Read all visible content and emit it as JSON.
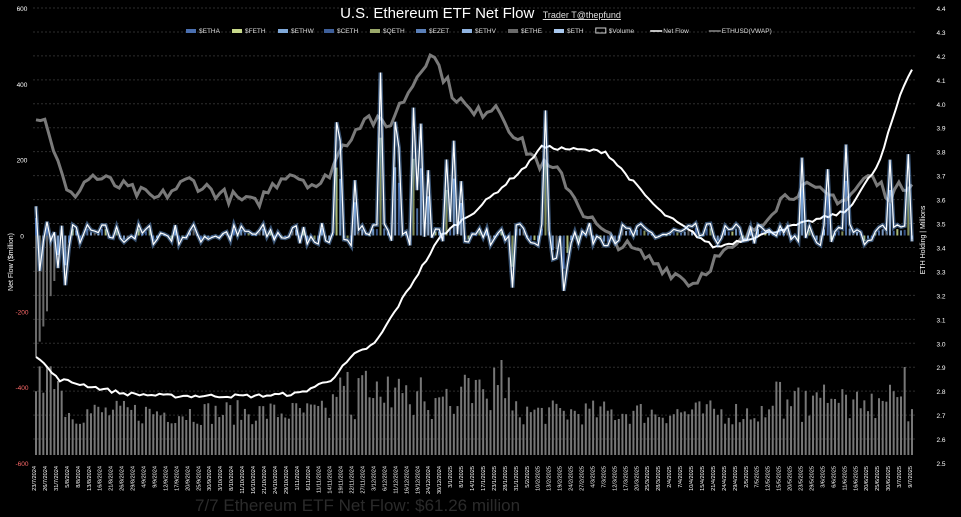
{
  "chart_data": {
    "type": "bar",
    "title": "U.S. Ethereum ETF Net Flow",
    "credit": "Trader T@thepfund",
    "ylabel_left": "Net Flow ($million)",
    "ylabel_right": "ETH Holding | Millions",
    "left_axis": {
      "ticks": [
        600,
        400,
        200,
        0,
        -200,
        -400,
        -600
      ],
      "min": -600,
      "max": 600
    },
    "right_axis": {
      "ticks": [
        4.4,
        4.3,
        4.2,
        4.1,
        4.0,
        3.9,
        3.8,
        3.7,
        3.6,
        3.5,
        3.4,
        3.3,
        3.2,
        3.1,
        3.0,
        2.9,
        2.8,
        2.7,
        2.6,
        2.5
      ],
      "min": 2.5,
      "max": 4.4
    },
    "legend": {
      "placement": "top",
      "items": [
        {
          "label": "$ETHA",
          "color": "#4a6fb0",
          "kind": "bar"
        },
        {
          "label": "$FETH",
          "color": "#c8d98a",
          "kind": "bar"
        },
        {
          "label": "$ETHW",
          "color": "#7fa8d8",
          "kind": "bar"
        },
        {
          "label": "$CETH",
          "color": "#3e5f9a",
          "kind": "bar"
        },
        {
          "label": "$QETH",
          "color": "#9aa86a",
          "kind": "bar"
        },
        {
          "label": "$EZET",
          "color": "#5a7fb8",
          "kind": "bar"
        },
        {
          "label": "$ETHV",
          "color": "#8fb3e0",
          "kind": "bar"
        },
        {
          "label": "$ETHE",
          "color": "#6a6a6a",
          "kind": "bar"
        },
        {
          "label": "$ETH",
          "color": "#a9c8ee",
          "kind": "bar"
        },
        {
          "label": "$Volume",
          "color": "#cfcfcf",
          "kind": "box"
        },
        {
          "label": "Net Flow",
          "color": "#ffffff",
          "kind": "line"
        },
        {
          "label": "ETHUSD(VWAP)",
          "color": "#888888",
          "kind": "line"
        }
      ]
    },
    "x_labels": [
      "23/7/2024",
      "26/7/2024",
      "31/7/2024",
      "5/8/2024",
      "8/8/2024",
      "13/8/2024",
      "16/8/2024",
      "21/8/2024",
      "26/8/2024",
      "29/8/2024",
      "4/9/2024",
      "9/9/2024",
      "12/9/2024",
      "17/9/2024",
      "20/9/2024",
      "25/9/2024",
      "30/9/2024",
      "3/10/2024",
      "8/10/2024",
      "11/10/2024",
      "16/10/2024",
      "21/10/2024",
      "24/10/2024",
      "29/10/2024",
      "1/11/2024",
      "6/11/2024",
      "11/11/2024",
      "14/11/2024",
      "19/11/2024",
      "22/11/2024",
      "27/11/2024",
      "3/12/2024",
      "6/12/2024",
      "11/12/2024",
      "16/12/2024",
      "19/12/2024",
      "24/12/2024",
      "30/12/2024",
      "3/1/2025",
      "8/1/2025",
      "14/1/2025",
      "17/1/2025",
      "23/1/2025",
      "28/1/2025",
      "31/1/2025",
      "5/2/2025",
      "10/2/2025",
      "13/2/2025",
      "19/2/2025",
      "24/2/2025",
      "27/2/2025",
      "4/3/2025",
      "7/3/2025",
      "12/3/2025",
      "17/3/2025",
      "20/3/2025",
      "25/3/2025",
      "28/3/2025",
      "2/4/2025",
      "7/4/2025",
      "10/4/2025",
      "15/4/2025",
      "21/4/2025",
      "24/4/2025",
      "29/4/2025",
      "2/5/2025",
      "7/5/2025",
      "12/5/2025",
      "15/5/2025",
      "20/5/2025",
      "23/5/2025",
      "29/5/2025",
      "3/6/2025",
      "6/6/2025",
      "11/6/2025",
      "16/6/2025",
      "20/6/2025",
      "25/6/2025",
      "30/6/2025",
      "3/7/2025",
      "9/7/2025"
    ],
    "eth_holding_anchors": [
      [
        0,
        2.95
      ],
      [
        2,
        2.85
      ],
      [
        5,
        2.82
      ],
      [
        8,
        2.79
      ],
      [
        12,
        2.78
      ],
      [
        20,
        2.78
      ],
      [
        24,
        2.79
      ],
      [
        27,
        2.85
      ],
      [
        29,
        2.95
      ],
      [
        31,
        3.0
      ],
      [
        33,
        3.15
      ],
      [
        35,
        3.3
      ],
      [
        37,
        3.45
      ],
      [
        40,
        3.55
      ],
      [
        45,
        3.75
      ],
      [
        46,
        3.82
      ],
      [
        52,
        3.8
      ],
      [
        57,
        3.55
      ],
      [
        62,
        3.4
      ],
      [
        66,
        3.45
      ],
      [
        70,
        3.5
      ],
      [
        74,
        3.55
      ],
      [
        77,
        3.75
      ],
      [
        79,
        4.05
      ],
      [
        81,
        4.25
      ],
      [
        82,
        4.38
      ]
    ],
    "ethusd_vwap_anchors": [
      [
        0,
        3.95
      ],
      [
        1,
        3.92
      ],
      [
        2,
        3.75
      ],
      [
        3,
        3.6
      ],
      [
        5,
        3.7
      ],
      [
        8,
        3.65
      ],
      [
        11,
        3.6
      ],
      [
        14,
        3.68
      ],
      [
        17,
        3.62
      ],
      [
        20,
        3.58
      ],
      [
        23,
        3.72
      ],
      [
        26,
        3.65
      ],
      [
        28,
        3.82
      ],
      [
        30,
        3.95
      ],
      [
        32,
        3.9
      ],
      [
        34,
        4.05
      ],
      [
        36,
        4.22
      ],
      [
        38,
        4.05
      ],
      [
        40,
        3.95
      ],
      [
        42,
        4.0
      ],
      [
        44,
        3.85
      ],
      [
        46,
        3.75
      ],
      [
        48,
        3.7
      ],
      [
        50,
        3.55
      ],
      [
        52,
        3.45
      ],
      [
        54,
        3.4
      ],
      [
        56,
        3.35
      ],
      [
        58,
        3.3
      ],
      [
        60,
        3.25
      ],
      [
        62,
        3.35
      ],
      [
        64,
        3.4
      ],
      [
        66,
        3.5
      ],
      [
        68,
        3.6
      ],
      [
        70,
        3.65
      ],
      [
        72,
        3.62
      ],
      [
        74,
        3.6
      ],
      [
        76,
        3.7
      ],
      [
        78,
        3.62
      ],
      [
        80,
        3.68
      ],
      [
        82,
        3.7
      ]
    ],
    "footer_text": "7/7 Ethereum ETF Net Flow: $61.26 million"
  }
}
